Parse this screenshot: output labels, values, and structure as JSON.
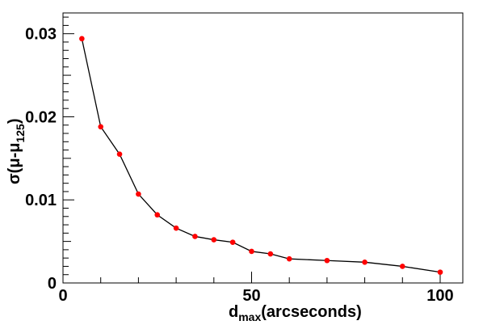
{
  "chart_data": {
    "type": "line",
    "x": [
      5,
      10,
      15,
      20,
      25,
      30,
      35,
      40,
      45,
      50,
      55,
      60,
      70,
      80,
      90,
      100
    ],
    "series": [
      {
        "values": [
          0.0294,
          0.0188,
          0.0155,
          0.0107,
          0.0082,
          0.0066,
          0.0056,
          0.0052,
          0.0049,
          0.0038,
          0.0035,
          0.0029,
          0.0027,
          0.0025,
          0.002,
          0.0013
        ],
        "line_color": "#000000",
        "marker_color": "#ff0000"
      }
    ],
    "xlim": [
      0,
      106
    ],
    "ylim": [
      0,
      0.0325
    ],
    "x_ticks": [
      0,
      50,
      100
    ],
    "x_tick_labels": [
      "0",
      "50",
      "100"
    ],
    "y_ticks": [
      0,
      0.01,
      0.02,
      0.03
    ],
    "y_tick_labels": [
      "0",
      "0.01",
      "0.02",
      "0.03"
    ],
    "xlabel": {
      "main": "d",
      "sub": "max",
      "rest": "(arcseconds)"
    },
    "ylabel": {
      "main": "σ(μ-μ",
      "sub": "125",
      "rest": ")"
    },
    "grid": false
  }
}
